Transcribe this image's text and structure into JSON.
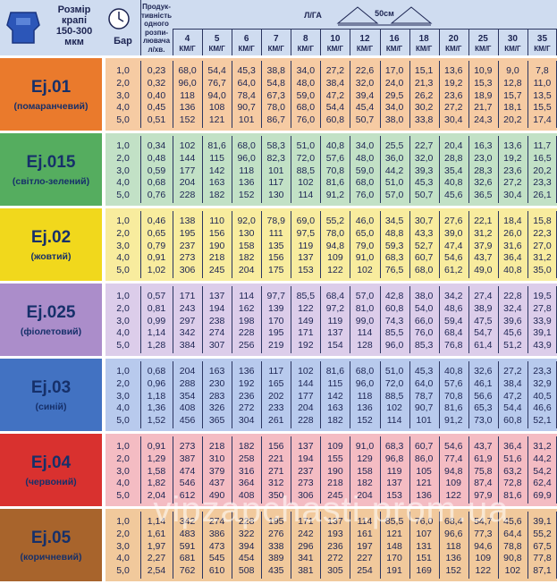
{
  "header": {
    "drop_size": [
      "Розмір",
      "крапі",
      "150-300",
      "мкм"
    ],
    "pressure": "Бар",
    "productivity": [
      "Продук-",
      "тивність",
      "одного",
      "розпи-",
      "лювача",
      "л/хв."
    ],
    "rate": "Л/ГА",
    "spacing": "50см",
    "speeds": [
      "4",
      "5",
      "6",
      "7",
      "8",
      "10",
      "12",
      "16",
      "18",
      "20",
      "25",
      "30",
      "35"
    ],
    "speed_unit": "КМ/Г"
  },
  "groups": [
    {
      "name": "Ej.01",
      "color_name": "(помаранчевий)",
      "label_color": "#ea7a2c",
      "row_color": "#f6cba3",
      "rows": [
        [
          "1,0",
          "0,23",
          "68,0",
          "54,4",
          "45,3",
          "38,8",
          "34,0",
          "27,2",
          "22,6",
          "17,0",
          "15,1",
          "13,6",
          "10,9",
          "9,0",
          "7,8"
        ],
        [
          "2,0",
          "0,32",
          "96,0",
          "76,7",
          "64,0",
          "54,8",
          "48,0",
          "38,4",
          "32,0",
          "24,0",
          "21,3",
          "19,2",
          "15,3",
          "12,8",
          "11,0"
        ],
        [
          "3,0",
          "0,40",
          "118",
          "94,0",
          "78,4",
          "67,3",
          "59,0",
          "47,2",
          "39,4",
          "29,5",
          "26,2",
          "23,6",
          "18,9",
          "15,7",
          "13,5"
        ],
        [
          "4,0",
          "0,45",
          "136",
          "108",
          "90,7",
          "78,0",
          "68,0",
          "54,4",
          "45,4",
          "34,0",
          "30,2",
          "27,2",
          "21,7",
          "18,1",
          "15,5"
        ],
        [
          "5,0",
          "0,51",
          "152",
          "121",
          "101",
          "86,7",
          "76,0",
          "60,8",
          "50,7",
          "38,0",
          "33,8",
          "30,4",
          "24,3",
          "20,2",
          "17,4"
        ]
      ]
    },
    {
      "name": "Ej.015",
      "color_name": "(світло-зелений)",
      "label_color": "#55ad5f",
      "row_color": "#c2e1c6",
      "rows": [
        [
          "1,0",
          "0,34",
          "102",
          "81,6",
          "68,0",
          "58,3",
          "51,0",
          "40,8",
          "34,0",
          "25,5",
          "22,7",
          "20,4",
          "16,3",
          "13,6",
          "11,7"
        ],
        [
          "2,0",
          "0,48",
          "144",
          "115",
          "96,0",
          "82,3",
          "72,0",
          "57,6",
          "48,0",
          "36,0",
          "32,0",
          "28,8",
          "23,0",
          "19,2",
          "16,5"
        ],
        [
          "3,0",
          "0,59",
          "177",
          "142",
          "118",
          "101",
          "88,5",
          "70,8",
          "59,0",
          "44,2",
          "39,3",
          "35,4",
          "28,3",
          "23,6",
          "20,2"
        ],
        [
          "4,0",
          "0,68",
          "204",
          "163",
          "136",
          "117",
          "102",
          "81,6",
          "68,0",
          "51,0",
          "45,3",
          "40,8",
          "32,6",
          "27,2",
          "23,3"
        ],
        [
          "5,0",
          "0,76",
          "228",
          "182",
          "152",
          "130",
          "114",
          "91,2",
          "76,0",
          "57,0",
          "50,7",
          "45,6",
          "36,5",
          "30,4",
          "26,1"
        ]
      ]
    },
    {
      "name": "Ej.02",
      "color_name": "(жовтий)",
      "label_color": "#f1d81c",
      "row_color": "#f8ec9e",
      "rows": [
        [
          "1,0",
          "0,46",
          "138",
          "110",
          "92,0",
          "78,9",
          "69,0",
          "55,2",
          "46,0",
          "34,5",
          "30,7",
          "27,6",
          "22,1",
          "18,4",
          "15,8"
        ],
        [
          "2,0",
          "0,65",
          "195",
          "156",
          "130",
          "111",
          "97,5",
          "78,0",
          "65,0",
          "48,8",
          "43,3",
          "39,0",
          "31,2",
          "26,0",
          "22,3"
        ],
        [
          "3,0",
          "0,79",
          "237",
          "190",
          "158",
          "135",
          "119",
          "94,8",
          "79,0",
          "59,3",
          "52,7",
          "47,4",
          "37,9",
          "31,6",
          "27,0"
        ],
        [
          "4,0",
          "0,91",
          "273",
          "218",
          "182",
          "156",
          "137",
          "109",
          "91,0",
          "68,3",
          "60,7",
          "54,6",
          "43,7",
          "36,4",
          "31,2"
        ],
        [
          "5,0",
          "1,02",
          "306",
          "245",
          "204",
          "175",
          "153",
          "122",
          "102",
          "76,5",
          "68,0",
          "61,2",
          "49,0",
          "40,8",
          "35,0"
        ]
      ]
    },
    {
      "name": "Ej.025",
      "color_name": "(фіолетовий)",
      "label_color": "#ab8dca",
      "row_color": "#dccdea",
      "rows": [
        [
          "1,0",
          "0,57",
          "171",
          "137",
          "114",
          "97,7",
          "85,5",
          "68,4",
          "57,0",
          "42,8",
          "38,0",
          "34,2",
          "27,4",
          "22,8",
          "19,5"
        ],
        [
          "2,0",
          "0,81",
          "243",
          "194",
          "162",
          "139",
          "122",
          "97,2",
          "81,0",
          "60,8",
          "54,0",
          "48,6",
          "38,9",
          "32,4",
          "27,8"
        ],
        [
          "3,0",
          "0,99",
          "297",
          "238",
          "198",
          "170",
          "149",
          "119",
          "99,0",
          "74,3",
          "66,0",
          "59,4",
          "47,5",
          "39,6",
          "33,9"
        ],
        [
          "4,0",
          "1,14",
          "342",
          "274",
          "228",
          "195",
          "171",
          "137",
          "114",
          "85,5",
          "76,0",
          "68,4",
          "54,7",
          "45,6",
          "39,1"
        ],
        [
          "5,0",
          "1,28",
          "384",
          "307",
          "256",
          "219",
          "192",
          "154",
          "128",
          "96,0",
          "85,3",
          "76,8",
          "61,4",
          "51,2",
          "43,9"
        ]
      ]
    },
    {
      "name": "Ej.03",
      "color_name": "(синій)",
      "label_color": "#4272c2",
      "row_color": "#b8caed",
      "rows": [
        [
          "1,0",
          "0,68",
          "204",
          "163",
          "136",
          "117",
          "102",
          "81,6",
          "68,0",
          "51,0",
          "45,3",
          "40,8",
          "32,6",
          "27,2",
          "23,3"
        ],
        [
          "2,0",
          "0,96",
          "288",
          "230",
          "192",
          "165",
          "144",
          "115",
          "96,0",
          "72,0",
          "64,0",
          "57,6",
          "46,1",
          "38,4",
          "32,9"
        ],
        [
          "3,0",
          "1,18",
          "354",
          "283",
          "236",
          "202",
          "177",
          "142",
          "118",
          "88,5",
          "78,7",
          "70,8",
          "56,6",
          "47,2",
          "40,5"
        ],
        [
          "4,0",
          "1,36",
          "408",
          "326",
          "272",
          "233",
          "204",
          "163",
          "136",
          "102",
          "90,7",
          "81,6",
          "65,3",
          "54,4",
          "46,6"
        ],
        [
          "5,0",
          "1,52",
          "456",
          "365",
          "304",
          "261",
          "228",
          "182",
          "152",
          "114",
          "101",
          "91,2",
          "73,0",
          "60,8",
          "52,1"
        ]
      ]
    },
    {
      "name": "Ej.04",
      "color_name": "(червоний)",
      "label_color": "#d9312f",
      "row_color": "#f4bcc3",
      "rows": [
        [
          "1,0",
          "0,91",
          "273",
          "218",
          "182",
          "156",
          "137",
          "109",
          "91,0",
          "68,3",
          "60,7",
          "54,6",
          "43,7",
          "36,4",
          "31,2"
        ],
        [
          "2,0",
          "1,29",
          "387",
          "310",
          "258",
          "221",
          "194",
          "155",
          "129",
          "96,8",
          "86,0",
          "77,4",
          "61,9",
          "51,6",
          "44,2"
        ],
        [
          "3,0",
          "1,58",
          "474",
          "379",
          "316",
          "271",
          "237",
          "190",
          "158",
          "119",
          "105",
          "94,8",
          "75,8",
          "63,2",
          "54,2"
        ],
        [
          "4,0",
          "1,82",
          "546",
          "437",
          "364",
          "312",
          "273",
          "218",
          "182",
          "137",
          "121",
          "109",
          "87,4",
          "72,8",
          "62,4"
        ],
        [
          "5,0",
          "2,04",
          "612",
          "490",
          "408",
          "350",
          "306",
          "245",
          "204",
          "153",
          "136",
          "122",
          "97,9",
          "81,6",
          "69,9"
        ]
      ]
    },
    {
      "name": "Ej.05",
      "color_name": "(коричневий)",
      "label_color": "#a8642c",
      "row_color": "#f1c99c",
      "rows": [
        [
          "1,0",
          "1,14",
          "342",
          "274",
          "228",
          "195",
          "171",
          "137",
          "114",
          "85,5",
          "76,0",
          "68,4",
          "54,7",
          "45,6",
          "39,1"
        ],
        [
          "2,0",
          "1,61",
          "483",
          "386",
          "322",
          "276",
          "242",
          "193",
          "161",
          "121",
          "107",
          "96,6",
          "77,3",
          "64,4",
          "55,2"
        ],
        [
          "3,0",
          "1,97",
          "591",
          "473",
          "394",
          "338",
          "296",
          "236",
          "197",
          "148",
          "131",
          "118",
          "94,6",
          "78,8",
          "67,5"
        ],
        [
          "4,0",
          "2,27",
          "681",
          "545",
          "454",
          "389",
          "341",
          "272",
          "227",
          "170",
          "151",
          "136",
          "109",
          "90,8",
          "77,8"
        ],
        [
          "5,0",
          "2,54",
          "762",
          "610",
          "508",
          "435",
          "381",
          "305",
          "254",
          "191",
          "169",
          "152",
          "122",
          "102",
          "87,1"
        ]
      ]
    }
  ],
  "watermark": "vipzapchasti.prom.ua"
}
